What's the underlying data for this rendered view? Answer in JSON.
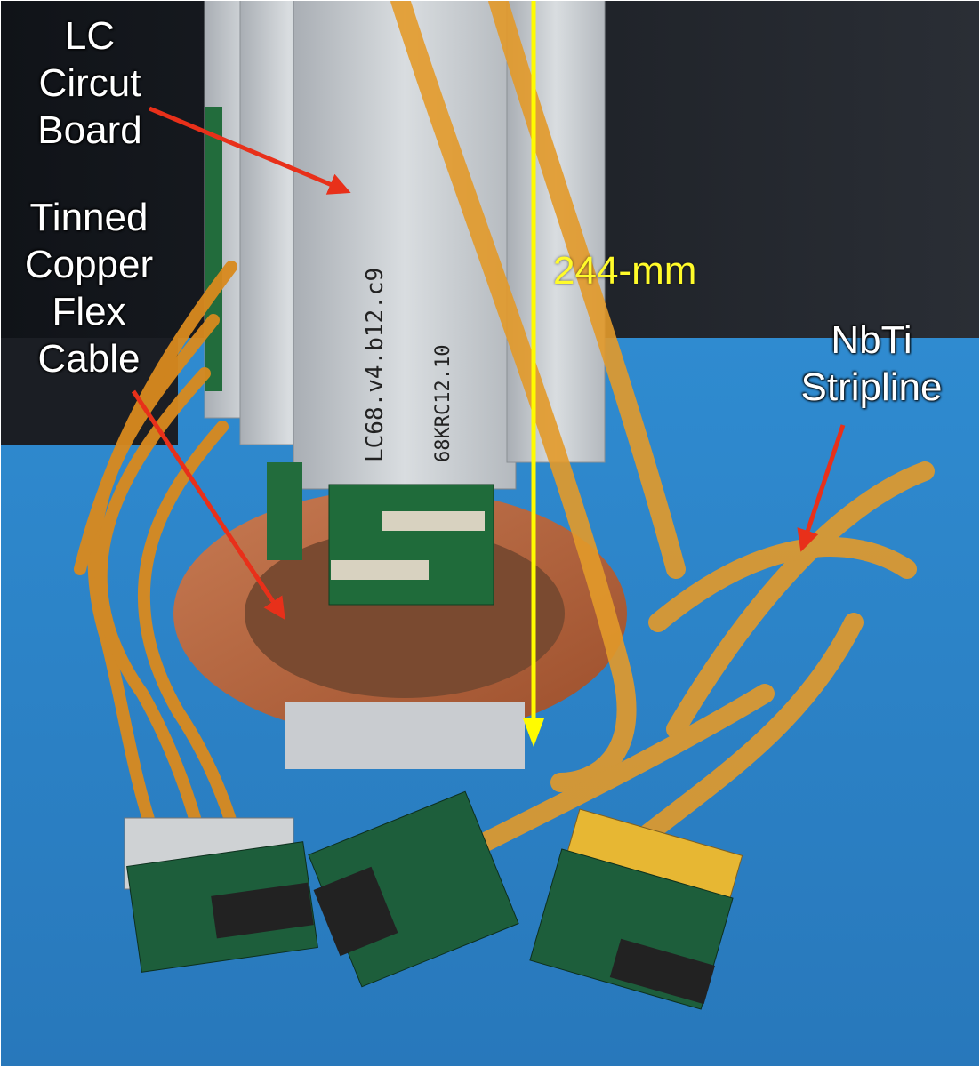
{
  "labels": {
    "lc_board": [
      "LC",
      "Circut",
      "Board"
    ],
    "flex_cable": [
      "Tinned",
      "Copper",
      "Flex",
      "Cable"
    ],
    "stripline": [
      "NbTi",
      "Stripline"
    ],
    "dimension": "244-mm"
  },
  "colors": {
    "arrow": "#e8301a",
    "dimension_line": "#fffb00",
    "background_wall": "#1c1f24",
    "table_surface": "#2f86c9",
    "copper_plate": "#b8643c",
    "kapton": "#d98a1e",
    "pcb_green": "#1f6b3a",
    "aluminum": "#c9cdd1"
  }
}
